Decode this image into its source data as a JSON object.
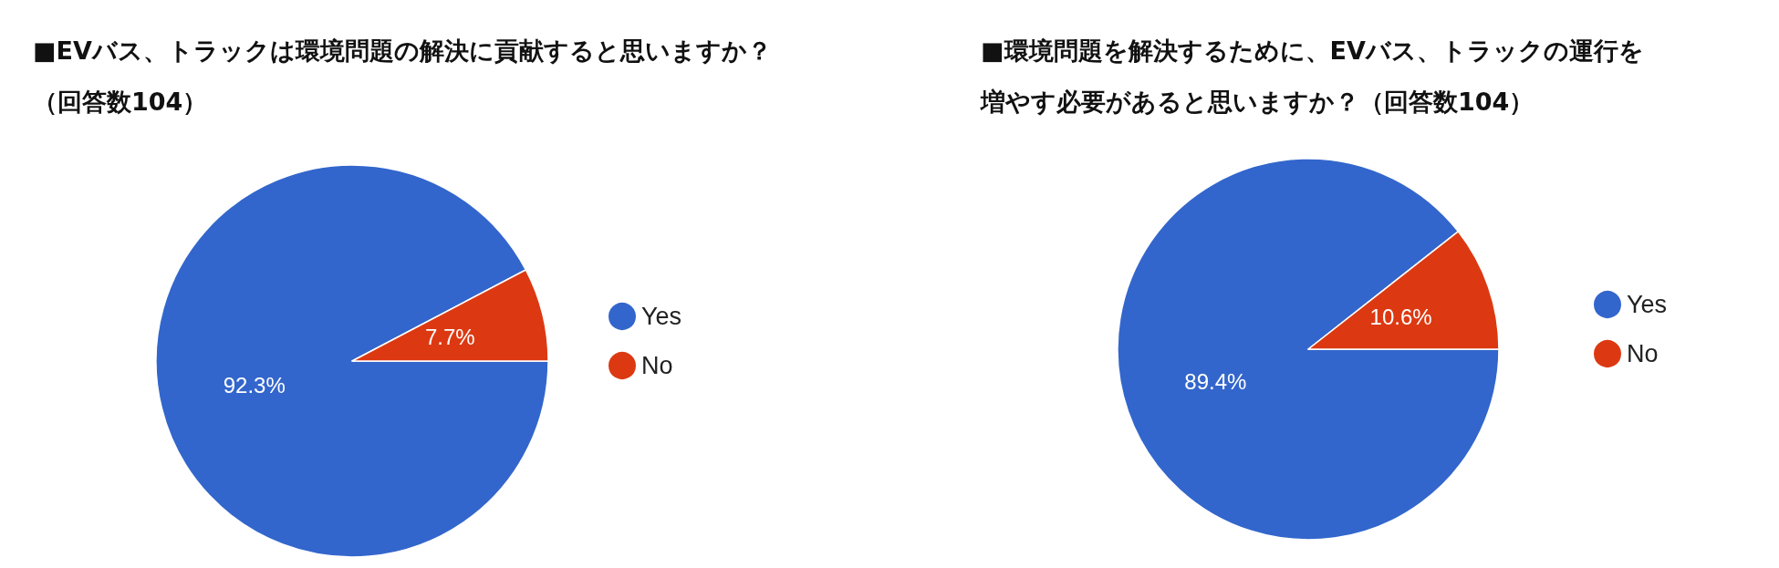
{
  "chart_data": [
    {
      "type": "pie",
      "title": "■EVバス、トラックは環境問題の解決に貢献すると思いますか？（回答数104）",
      "categories": [
        "Yes",
        "No"
      ],
      "values": [
        92.3,
        7.7
      ],
      "colors": [
        "#3366cc",
        "#dc3912"
      ],
      "value_labels": [
        "92.3%",
        "7.7%"
      ],
      "legend": "right"
    },
    {
      "type": "pie",
      "title": "■環境問題を解決するために、EVバス、トラックの運行を増やす必要があると思いますか？（回答数104）",
      "categories": [
        "Yes",
        "No"
      ],
      "values": [
        89.4,
        10.6
      ],
      "colors": [
        "#3366cc",
        "#dc3912"
      ],
      "value_labels": [
        "89.4%",
        "10.6%"
      ],
      "legend": "right"
    }
  ]
}
